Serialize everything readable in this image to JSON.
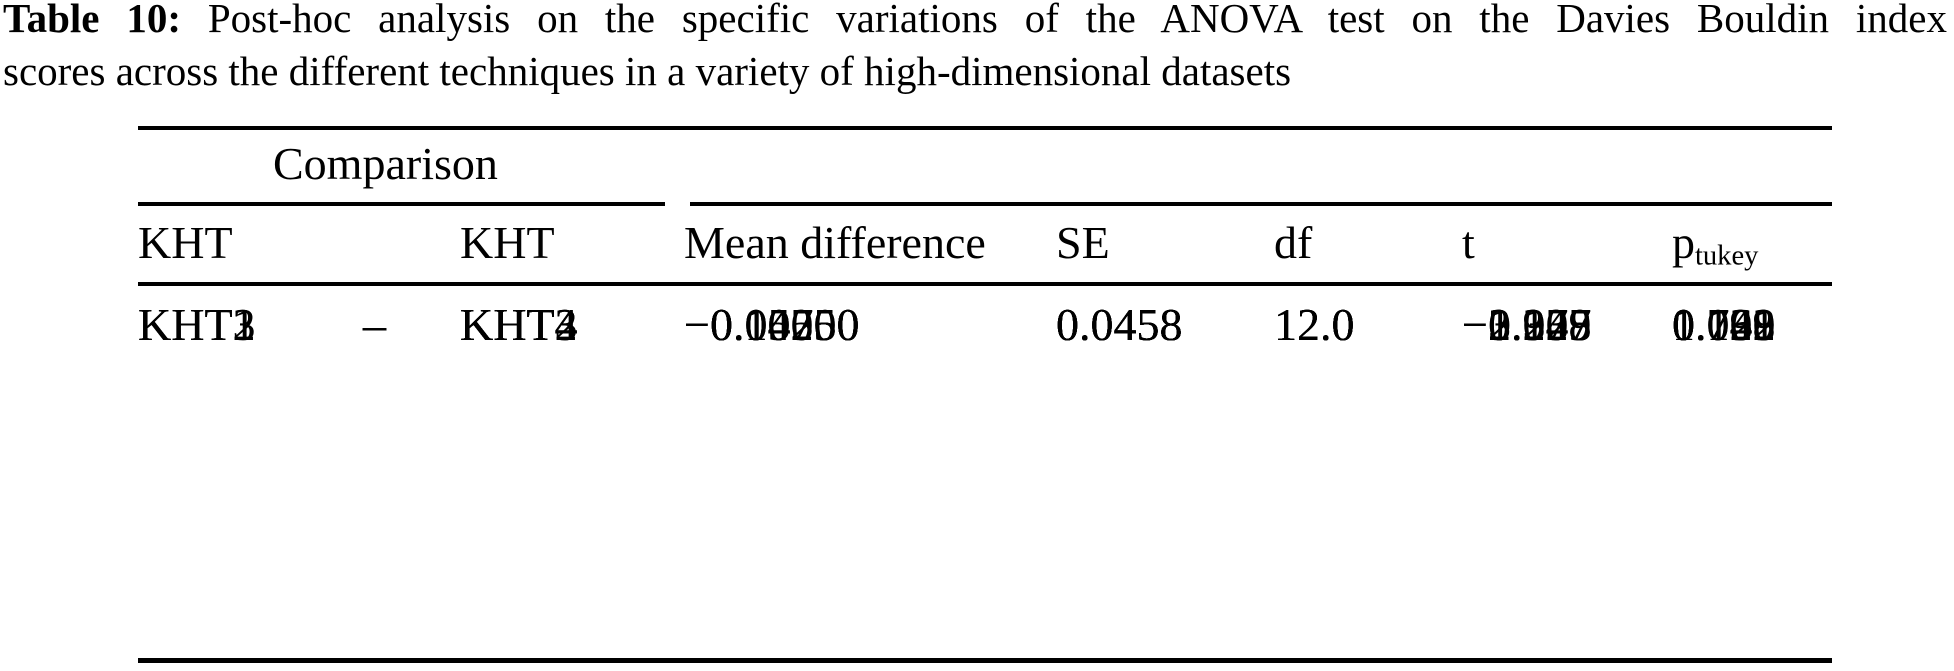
{
  "caption": {
    "label": "Table 10:",
    "line1": "Post-hoc analysis on the specific variations of the ANOVA test on the Davies Bouldin index",
    "line2": "scores across the different techniques in a variety of high-dimensional datasets"
  },
  "table": {
    "group_header": "Comparison",
    "columns": {
      "kht_a": "KHT",
      "kht_b": "KHT",
      "mean_diff": "Mean difference",
      "se": "SE",
      "df": "df",
      "t": "t",
      "p_base": "p",
      "p_sub": "tukey"
    },
    "rows": [
      {
        "kht_a": "KHT1",
        "dash": "–",
        "kht_b": "KHT2",
        "mean_diff": "−0.04250",
        "se": "0.0458",
        "df": "12.0",
        "t": "−0.928",
        "p_tukey": "0.791"
      },
      {
        "kht_a": "",
        "dash": "–",
        "kht_b": "KHT3",
        "mean_diff": "−0.04750",
        "se": "0.0458",
        "df": "12.0",
        "t": "−1.037",
        "p_tukey": "0.732"
      },
      {
        "kht_a": "",
        "dash": "–",
        "kht_b": "KHT4",
        "mean_diff": "−0.15000",
        "se": "0.0458",
        "df": "12.0",
        "t": "−3.275",
        "p_tukey": "0.029"
      },
      {
        "kht_a": "KHT2",
        "dash": "–",
        "kht_b": "KHT3",
        "mean_diff": "−0.00500",
        "se": "0.0458",
        "df": "12.0",
        "t": "−0.109",
        "p_tukey": "1.000"
      },
      {
        "kht_a": "",
        "dash": "–",
        "kht_b": "KHT4",
        "mean_diff": "−0.10750",
        "se": "0.0458",
        "df": "12.0",
        "t": "−2.347",
        "p_tukey": "0.142"
      },
      {
        "kht_a": "KHT3",
        "dash": "–",
        "kht_b": "KHT4",
        "mean_diff": "−0.10250",
        "se": "0.0458",
        "df": "12.0",
        "t": "−2.238",
        "p_tukey": "0.168"
      }
    ]
  },
  "colors": {
    "text": "#000000",
    "background": "#ffffff",
    "rule": "#000000"
  }
}
